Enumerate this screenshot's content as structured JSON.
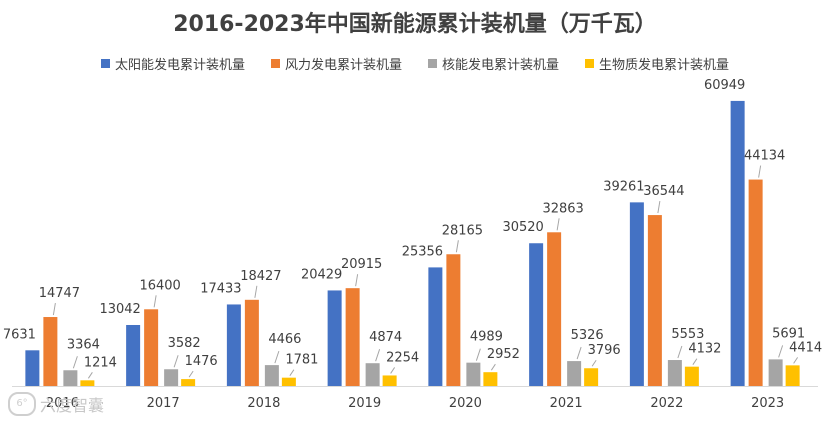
{
  "chart_data": {
    "type": "bar",
    "title": "2016-2023年中国新能源累计装机量（万千瓦）",
    "categories": [
      "2016",
      "2017",
      "2018",
      "2019",
      "2020",
      "2021",
      "2022",
      "2023"
    ],
    "series": [
      {
        "name": "太阳能发电累计装机量",
        "color": "#4472C4",
        "values": [
          7631,
          13042,
          17433,
          20429,
          25356,
          30520,
          39261,
          60949
        ]
      },
      {
        "name": "风力发电累计装机量",
        "color": "#ED7D31",
        "values": [
          14747,
          16400,
          18427,
          20915,
          28165,
          32863,
          36544,
          44134
        ]
      },
      {
        "name": "核能发电累计装机量",
        "color": "#A5A5A5",
        "values": [
          3364,
          3582,
          4466,
          4874,
          4989,
          5326,
          5553,
          5691
        ]
      },
      {
        "name": "生物质发电累计装机量",
        "color": "#FFC000",
        "values": [
          1214,
          1476,
          1781,
          2254,
          2952,
          3796,
          4132,
          4414
        ]
      }
    ],
    "ylim": [
      0,
      62000
    ],
    "grid": false,
    "legend": "top"
  },
  "watermark": {
    "text": "六度智囊",
    "logo_text": "6°"
  }
}
